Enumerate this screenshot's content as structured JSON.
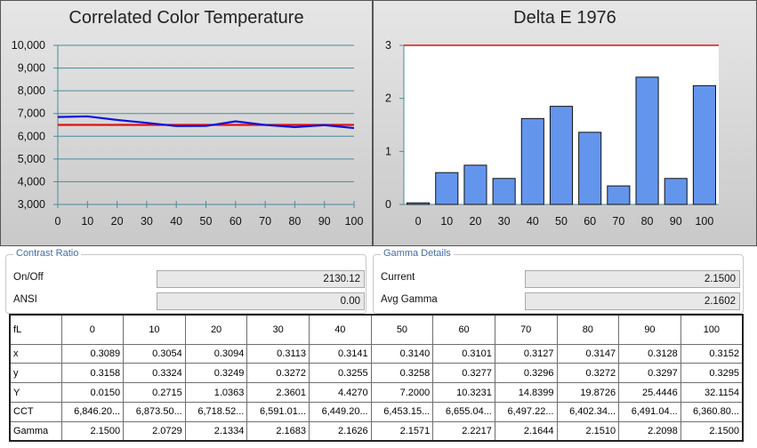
{
  "chart_data": [
    {
      "type": "line",
      "title": "Correlated Color Temperature",
      "x": [
        0,
        10,
        20,
        30,
        40,
        50,
        60,
        70,
        80,
        90,
        100
      ],
      "xticks": [
        "0",
        "10",
        "20",
        "30",
        "40",
        "50",
        "60",
        "70",
        "80",
        "90",
        "100"
      ],
      "yticks": [
        "3,000",
        "4,000",
        "5,000",
        "6,000",
        "7,000",
        "8,000",
        "9,000",
        "10,000"
      ],
      "ylim": [
        3000,
        10000
      ],
      "xlim": [
        0,
        100
      ],
      "series": [
        {
          "color": "#1010e0",
          "values": [
            6846,
            6873,
            6718,
            6591,
            6449,
            6453,
            6655,
            6497,
            6402,
            6491,
            6360
          ]
        },
        {
          "color": "#e01010",
          "values": [
            6500,
            6500,
            6500,
            6500,
            6500,
            6500,
            6500,
            6500,
            6500,
            6500,
            6500
          ]
        }
      ],
      "grid": true
    },
    {
      "type": "bar",
      "title": "Delta E 1976",
      "categories": [
        "0",
        "10",
        "20",
        "30",
        "40",
        "50",
        "60",
        "70",
        "80",
        "90",
        "100"
      ],
      "values": [
        0.03,
        0.6,
        0.74,
        0.49,
        1.62,
        1.85,
        1.36,
        0.35,
        2.4,
        0.49,
        2.24
      ],
      "yticks": [
        "0",
        "1",
        "2",
        "3"
      ],
      "ylim": [
        0,
        3
      ],
      "threshold": 3,
      "bar_color": "#6495ed",
      "threshold_color": "#e01010",
      "grid": false
    }
  ],
  "contrast": {
    "legend": "Contrast Ratio",
    "rows": [
      {
        "label": "On/Off",
        "value": "2130.12"
      },
      {
        "label": "ANSI",
        "value": "0.00"
      }
    ]
  },
  "gamma": {
    "legend": "Gamma Details",
    "rows": [
      {
        "label": "Current",
        "value": "2.1500"
      },
      {
        "label": "Avg Gamma",
        "value": "2.1602"
      }
    ]
  },
  "table": {
    "header": [
      "fL",
      "0",
      "10",
      "20",
      "30",
      "40",
      "50",
      "60",
      "70",
      "80",
      "90",
      "100"
    ],
    "rows": [
      [
        "x",
        "0.3089",
        "0.3054",
        "0.3094",
        "0.3113",
        "0.3141",
        "0.3140",
        "0.3101",
        "0.3127",
        "0.3147",
        "0.3128",
        "0.3152"
      ],
      [
        "y",
        "0.3158",
        "0.3324",
        "0.3249",
        "0.3272",
        "0.3255",
        "0.3258",
        "0.3277",
        "0.3296",
        "0.3272",
        "0.3297",
        "0.3295"
      ],
      [
        "Y",
        "0.0150",
        "0.2715",
        "1.0363",
        "2.3601",
        "4.4270",
        "7.2000",
        "10.3231",
        "14.8399",
        "19.8726",
        "25.4446",
        "32.1154"
      ],
      [
        "CCT",
        "6,846.20...",
        "6,873.50...",
        "6,718.52...",
        "6,591.01...",
        "6,449.20...",
        "6,453.15...",
        "6,655.04...",
        "6,497.22...",
        "6,402.34...",
        "6,491.04...",
        "6,360.80..."
      ],
      [
        "Gamma",
        "2.1500",
        "2.0729",
        "2.1334",
        "2.1683",
        "2.1626",
        "2.1571",
        "2.2217",
        "2.1644",
        "2.1510",
        "2.2098",
        "2.1500"
      ]
    ]
  }
}
